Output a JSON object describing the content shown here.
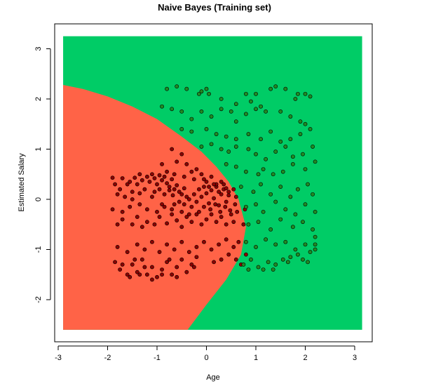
{
  "chart_data": {
    "type": "scatter",
    "title": "Naive Bayes (Training set)",
    "xlabel": "Age",
    "ylabel": "Estimated Salary",
    "xlim": [
      -3,
      3.3
    ],
    "ylim": [
      -2.9,
      3.4
    ],
    "x_ticks": [
      -3,
      -2,
      -1,
      0,
      1,
      2,
      3
    ],
    "y_ticks": [
      -2,
      -1,
      0,
      1,
      2,
      3
    ],
    "grid": false,
    "legend": "none",
    "region_extent": {
      "x": [
        -2.9,
        3.15
      ],
      "y": [
        -2.6,
        3.25
      ]
    },
    "decision_boundary": {
      "description_points": [
        [
          -2.9,
          2.28
        ],
        [
          -2.5,
          2.2
        ],
        [
          -2.0,
          2.05
        ],
        [
          -1.5,
          1.85
        ],
        [
          -1.0,
          1.6
        ],
        [
          -0.5,
          1.25
        ],
        [
          -0.1,
          0.95
        ],
        [
          0.2,
          0.65
        ],
        [
          0.45,
          0.35
        ],
        [
          0.65,
          0.0
        ],
        [
          0.8,
          -0.55
        ],
        [
          0.7,
          -1.1
        ],
        [
          0.4,
          -1.6
        ],
        [
          0.0,
          -2.1
        ],
        [
          -0.38,
          -2.6
        ]
      ]
    },
    "colors": {
      "class_0_region": "#FF6347",
      "class_1_region": "#00CC66",
      "class_0_point": "#8B0000",
      "class_1_point": "#228B22"
    },
    "series": [
      {
        "class": 0,
        "points": [
          [
            -1.9,
            0.43
          ],
          [
            -1.85,
            0.3
          ],
          [
            -1.7,
            0.42
          ],
          [
            -1.6,
            0.3
          ],
          [
            -1.55,
            0.35
          ],
          [
            -1.45,
            0.43
          ],
          [
            -1.4,
            0.3
          ],
          [
            -1.35,
            0.5
          ],
          [
            -1.3,
            0.38
          ],
          [
            -1.2,
            0.45
          ],
          [
            -1.15,
            0.35
          ],
          [
            -1.1,
            0.5
          ],
          [
            -1.05,
            0.42
          ],
          [
            -1.0,
            0.3
          ],
          [
            -0.95,
            0.48
          ],
          [
            -0.9,
            0.38
          ],
          [
            -0.85,
            0.45
          ],
          [
            -0.8,
            0.32
          ],
          [
            -0.75,
            0.25
          ],
          [
            -0.7,
            0.4
          ],
          [
            -0.65,
            0.2
          ],
          [
            -0.6,
            0.28
          ],
          [
            -0.55,
            0.15
          ],
          [
            -0.5,
            0.1
          ],
          [
            -0.45,
            0.22
          ],
          [
            -0.4,
            0.05
          ],
          [
            -1.8,
            0.1
          ],
          [
            -1.75,
            0.2
          ],
          [
            -1.65,
            0.05
          ],
          [
            -1.5,
            0.15
          ],
          [
            -1.35,
            0.12
          ],
          [
            -1.25,
            0.2
          ],
          [
            -1.05,
            0.15
          ],
          [
            -0.95,
            0.2
          ],
          [
            -0.85,
            0.1
          ],
          [
            -0.75,
            0.18
          ],
          [
            -0.68,
            0.08
          ],
          [
            -0.55,
            -0.05
          ],
          [
            -0.45,
            -0.1
          ],
          [
            -0.35,
            0.0
          ],
          [
            -0.3,
            -0.15
          ],
          [
            -0.25,
            0.1
          ],
          [
            -0.2,
            -0.05
          ],
          [
            -0.15,
            0.2
          ],
          [
            -0.1,
            0.05
          ],
          [
            -0.05,
            0.25
          ],
          [
            0.0,
            0.12
          ],
          [
            0.05,
            -0.08
          ],
          [
            0.1,
            0.18
          ],
          [
            0.15,
            0.02
          ],
          [
            0.2,
            0.25
          ],
          [
            0.25,
            -0.12
          ],
          [
            0.3,
            0.1
          ],
          [
            0.35,
            0.2
          ],
          [
            0.4,
            -0.05
          ],
          [
            0.45,
            0.08
          ],
          [
            -1.8,
            -0.5
          ],
          [
            -1.7,
            -0.4
          ],
          [
            -1.5,
            -0.5
          ],
          [
            -1.4,
            -0.35
          ],
          [
            -1.3,
            -0.55
          ],
          [
            -1.2,
            -0.45
          ],
          [
            -1.05,
            -0.5
          ],
          [
            -0.95,
            -0.35
          ],
          [
            -0.8,
            -0.48
          ],
          [
            -0.7,
            -0.3
          ],
          [
            -0.6,
            -0.42
          ],
          [
            -0.5,
            -0.55
          ],
          [
            -0.4,
            -0.35
          ],
          [
            -0.3,
            -0.45
          ],
          [
            -0.2,
            -0.3
          ],
          [
            -0.1,
            -0.5
          ],
          [
            0.0,
            -0.4
          ],
          [
            0.1,
            -0.3
          ],
          [
            0.2,
            -0.45
          ],
          [
            0.3,
            -0.35
          ],
          [
            0.4,
            -0.5
          ],
          [
            0.5,
            -0.3
          ],
          [
            0.55,
            -0.45
          ],
          [
            -0.05,
            -0.15
          ],
          [
            -0.15,
            -0.25
          ],
          [
            0.08,
            -0.2
          ],
          [
            0.18,
            -0.1
          ],
          [
            0.28,
            -0.25
          ],
          [
            0.38,
            -0.15
          ],
          [
            0.48,
            -0.22
          ],
          [
            0.58,
            -0.1
          ],
          [
            0.62,
            -0.25
          ],
          [
            -1.85,
            -1.25
          ],
          [
            -1.75,
            -1.4
          ],
          [
            -1.6,
            -1.5
          ],
          [
            -1.5,
            -1.3
          ],
          [
            -1.4,
            -1.45
          ],
          [
            -1.3,
            -1.2
          ],
          [
            -1.2,
            -1.5
          ],
          [
            -1.1,
            -1.35
          ],
          [
            -1.0,
            -1.55
          ],
          [
            -0.9,
            -1.4
          ],
          [
            -0.8,
            -1.25
          ],
          [
            -0.7,
            -1.5
          ],
          [
            -0.6,
            -1.35
          ],
          [
            -0.5,
            -1.2
          ],
          [
            -0.4,
            -1.45
          ],
          [
            -0.3,
            -1.3
          ],
          [
            -0.2,
            -1.15
          ],
          [
            -1.8,
            -0.95
          ],
          [
            -1.6,
            -1.05
          ],
          [
            -1.4,
            -0.9
          ],
          [
            -1.25,
            -1.0
          ],
          [
            -1.1,
            -0.85
          ],
          [
            -0.95,
            -1.05
          ],
          [
            -0.8,
            -0.9
          ],
          [
            -0.65,
            -1.0
          ],
          [
            -0.5,
            -0.85
          ],
          [
            -0.35,
            -1.05
          ],
          [
            -0.2,
            -0.95
          ],
          [
            -0.05,
            -0.85
          ],
          [
            0.1,
            -1.0
          ],
          [
            0.25,
            -0.9
          ],
          [
            0.4,
            -0.8
          ],
          [
            0.55,
            -0.95
          ],
          [
            0.65,
            -0.85
          ],
          [
            -1.55,
            -1.55
          ],
          [
            -1.35,
            -1.5
          ],
          [
            -1.1,
            -1.6
          ],
          [
            -0.9,
            -1.5
          ],
          [
            -0.6,
            -1.55
          ],
          [
            -1.7,
            -1.3
          ],
          [
            -1.45,
            -1.2
          ],
          [
            -1.25,
            -1.35
          ],
          [
            -0.75,
            -1.2
          ],
          [
            -0.25,
            -1.35
          ],
          [
            -0.7,
            1.0
          ],
          [
            -0.6,
            0.75
          ],
          [
            -0.5,
            0.9
          ],
          [
            -0.4,
            0.7
          ],
          [
            -0.3,
            0.55
          ],
          [
            -0.2,
            0.6
          ],
          [
            -0.1,
            0.5
          ],
          [
            0.0,
            0.35
          ],
          [
            0.1,
            0.45
          ],
          [
            0.2,
            0.3
          ],
          [
            0.3,
            0.35
          ],
          [
            0.4,
            0.22
          ],
          [
            -0.9,
            0.7
          ],
          [
            -0.8,
            0.55
          ],
          [
            -0.65,
            0.5
          ],
          [
            -0.45,
            0.45
          ],
          [
            -0.25,
            0.4
          ],
          [
            -1.5,
            0.0
          ],
          [
            -1.1,
            0.05
          ],
          [
            -0.9,
            -0.1
          ],
          [
            -0.7,
            -0.2
          ],
          [
            -0.5,
            -0.25
          ],
          [
            -0.35,
            -0.3
          ],
          [
            -1.9,
            -0.2
          ],
          [
            -1.7,
            -0.25
          ],
          [
            -1.55,
            -0.15
          ],
          [
            -1.35,
            -0.1
          ],
          [
            -1.2,
            -0.2
          ],
          [
            -1.0,
            -0.25
          ],
          [
            -0.85,
            -0.15
          ],
          [
            -0.65,
            -0.1
          ],
          [
            0.75,
            -0.5
          ],
          [
            0.78,
            -0.2
          ],
          [
            0.8,
            -1.1
          ],
          [
            0.7,
            -1.3
          ],
          [
            0.6,
            -1.2
          ],
          [
            0.45,
            -1.1
          ],
          [
            0.3,
            -1.2
          ],
          [
            0.15,
            -1.25
          ],
          [
            0.05,
            0.25
          ],
          [
            -0.05,
            0.4
          ],
          [
            0.15,
            0.3
          ],
          [
            0.25,
            0.15
          ],
          [
            0.35,
            0.3
          ],
          [
            0.45,
            0.15
          ],
          [
            0.55,
            0.2
          ],
          [
            0.6,
            0.05
          ]
        ]
      },
      {
        "class": 1,
        "points": [
          [
            -0.8,
            2.2
          ],
          [
            -0.6,
            2.25
          ],
          [
            -0.4,
            2.2
          ],
          [
            -0.15,
            2.1
          ],
          [
            -0.1,
            2.15
          ],
          [
            0.0,
            2.2
          ],
          [
            0.05,
            2.1
          ],
          [
            0.3,
            2.0
          ],
          [
            0.6,
            1.9
          ],
          [
            0.8,
            2.1
          ],
          [
            0.9,
            1.95
          ],
          [
            1.0,
            2.1
          ],
          [
            1.1,
            1.85
          ],
          [
            1.3,
            2.2
          ],
          [
            1.4,
            2.25
          ],
          [
            1.6,
            2.2
          ],
          [
            1.8,
            2.0
          ],
          [
            1.85,
            2.1
          ],
          [
            2.0,
            2.1
          ],
          [
            2.1,
            2.05
          ],
          [
            -0.9,
            1.85
          ],
          [
            -0.7,
            1.8
          ],
          [
            -0.5,
            1.75
          ],
          [
            -0.3,
            1.6
          ],
          [
            -0.1,
            1.75
          ],
          [
            0.1,
            1.65
          ],
          [
            0.3,
            1.8
          ],
          [
            0.5,
            1.75
          ],
          [
            0.6,
            1.55
          ],
          [
            0.8,
            1.7
          ],
          [
            1.0,
            1.8
          ],
          [
            1.2,
            1.75
          ],
          [
            1.5,
            1.75
          ],
          [
            1.7,
            1.65
          ],
          [
            1.9,
            1.55
          ],
          [
            2.0,
            1.5
          ],
          [
            -0.5,
            1.4
          ],
          [
            -0.3,
            1.35
          ],
          [
            0.0,
            1.4
          ],
          [
            0.2,
            1.3
          ],
          [
            0.4,
            1.25
          ],
          [
            0.6,
            1.2
          ],
          [
            0.85,
            1.3
          ],
          [
            1.1,
            1.2
          ],
          [
            1.3,
            1.35
          ],
          [
            1.5,
            1.15
          ],
          [
            1.7,
            1.2
          ],
          [
            1.9,
            1.3
          ],
          [
            2.1,
            1.4
          ],
          [
            -0.1,
            1.05
          ],
          [
            0.1,
            1.1
          ],
          [
            0.3,
            1.0
          ],
          [
            0.45,
            0.95
          ],
          [
            0.6,
            1.05
          ],
          [
            0.85,
            1.0
          ],
          [
            1.0,
            0.9
          ],
          [
            1.2,
            0.8
          ],
          [
            1.4,
            0.95
          ],
          [
            1.6,
            1.05
          ],
          [
            1.75,
            0.85
          ],
          [
            1.95,
            0.9
          ],
          [
            2.15,
            1.05
          ],
          [
            0.4,
            0.7
          ],
          [
            0.6,
            0.65
          ],
          [
            0.8,
            0.55
          ],
          [
            1.05,
            0.5
          ],
          [
            1.15,
            0.6
          ],
          [
            1.35,
            0.5
          ],
          [
            1.55,
            0.55
          ],
          [
            1.75,
            0.7
          ],
          [
            2.0,
            0.6
          ],
          [
            2.2,
            0.75
          ],
          [
            0.7,
            0.25
          ],
          [
            0.95,
            0.15
          ],
          [
            1.1,
            0.3
          ],
          [
            1.3,
            0.1
          ],
          [
            1.5,
            0.25
          ],
          [
            1.7,
            0.05
          ],
          [
            1.85,
            0.2
          ],
          [
            2.05,
            0.3
          ],
          [
            2.15,
            0.1
          ],
          [
            0.8,
            -0.15
          ],
          [
            1.0,
            -0.1
          ],
          [
            1.15,
            -0.25
          ],
          [
            1.4,
            -0.05
          ],
          [
            1.6,
            -0.2
          ],
          [
            1.8,
            -0.3
          ],
          [
            2.0,
            -0.1
          ],
          [
            2.2,
            -0.25
          ],
          [
            0.85,
            -0.5
          ],
          [
            1.05,
            -0.45
          ],
          [
            1.3,
            -0.6
          ],
          [
            1.5,
            -0.4
          ],
          [
            1.75,
            -0.55
          ],
          [
            1.95,
            -0.45
          ],
          [
            2.15,
            -0.6
          ],
          [
            0.8,
            -0.85
          ],
          [
            1.0,
            -0.95
          ],
          [
            1.2,
            -0.8
          ],
          [
            1.4,
            -0.9
          ],
          [
            1.6,
            -0.85
          ],
          [
            1.8,
            -1.0
          ],
          [
            2.0,
            -0.9
          ],
          [
            2.2,
            -0.75
          ],
          [
            2.2,
            -0.9
          ],
          [
            0.75,
            -1.3
          ],
          [
            0.9,
            -1.2
          ],
          [
            1.05,
            -1.35
          ],
          [
            1.25,
            -1.25
          ],
          [
            1.4,
            -1.3
          ],
          [
            1.55,
            -1.2
          ],
          [
            1.7,
            -1.15
          ],
          [
            1.95,
            -1.2
          ],
          [
            2.1,
            -1.05
          ],
          [
            2.05,
            -1.25
          ],
          [
            0.85,
            -1.4
          ],
          [
            1.15,
            -1.4
          ],
          [
            1.35,
            -1.4
          ],
          [
            1.65,
            -1.25
          ],
          [
            1.85,
            -1.1
          ],
          [
            2.2,
            -1.0
          ]
        ]
      }
    ]
  }
}
